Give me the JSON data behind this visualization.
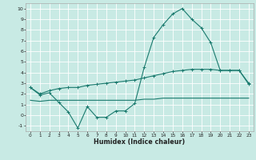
{
  "xlabel": "Humidex (Indice chaleur)",
  "xlim": [
    -0.5,
    23.5
  ],
  "ylim": [
    -1.5,
    10.5
  ],
  "xticks": [
    0,
    1,
    2,
    3,
    4,
    5,
    6,
    7,
    8,
    9,
    10,
    11,
    12,
    13,
    14,
    15,
    16,
    17,
    18,
    19,
    20,
    21,
    22,
    23
  ],
  "yticks": [
    -1,
    0,
    1,
    2,
    3,
    4,
    5,
    6,
    7,
    8,
    9,
    10
  ],
  "bg_color": "#c8eae4",
  "grid_color": "#ffffff",
  "line_color": "#1a7a6e",
  "curve1_x": [
    0,
    1,
    2,
    3,
    4,
    5,
    6,
    7,
    8,
    9,
    10,
    11,
    12,
    13,
    14,
    15,
    16,
    17,
    18,
    19,
    20,
    21,
    22,
    23
  ],
  "curve1_y": [
    2.6,
    1.9,
    2.1,
    1.2,
    0.3,
    -1.2,
    0.8,
    -0.2,
    -0.2,
    0.4,
    0.4,
    1.1,
    4.5,
    7.3,
    8.5,
    9.5,
    10.0,
    9.0,
    8.2,
    6.8,
    4.2,
    4.2,
    4.2,
    3.0
  ],
  "curve2_x": [
    0,
    1,
    2,
    3,
    4,
    5,
    6,
    7,
    8,
    9,
    10,
    11,
    12,
    13,
    14,
    15,
    16,
    17,
    18,
    19,
    20,
    21,
    22,
    23
  ],
  "curve2_y": [
    2.6,
    2.0,
    2.3,
    2.5,
    2.6,
    2.6,
    2.8,
    2.9,
    3.0,
    3.1,
    3.2,
    3.3,
    3.5,
    3.7,
    3.9,
    4.1,
    4.2,
    4.3,
    4.3,
    4.3,
    4.2,
    4.2,
    4.2,
    2.9
  ],
  "curve3_x": [
    0,
    1,
    2,
    3,
    4,
    5,
    6,
    7,
    8,
    9,
    10,
    11,
    12,
    13,
    14,
    15,
    16,
    17,
    18,
    19,
    20,
    21,
    22,
    23
  ],
  "curve3_y": [
    1.4,
    1.3,
    1.4,
    1.4,
    1.4,
    1.4,
    1.4,
    1.4,
    1.4,
    1.4,
    1.4,
    1.4,
    1.5,
    1.5,
    1.6,
    1.6,
    1.6,
    1.6,
    1.6,
    1.6,
    1.6,
    1.6,
    1.6,
    1.6
  ]
}
